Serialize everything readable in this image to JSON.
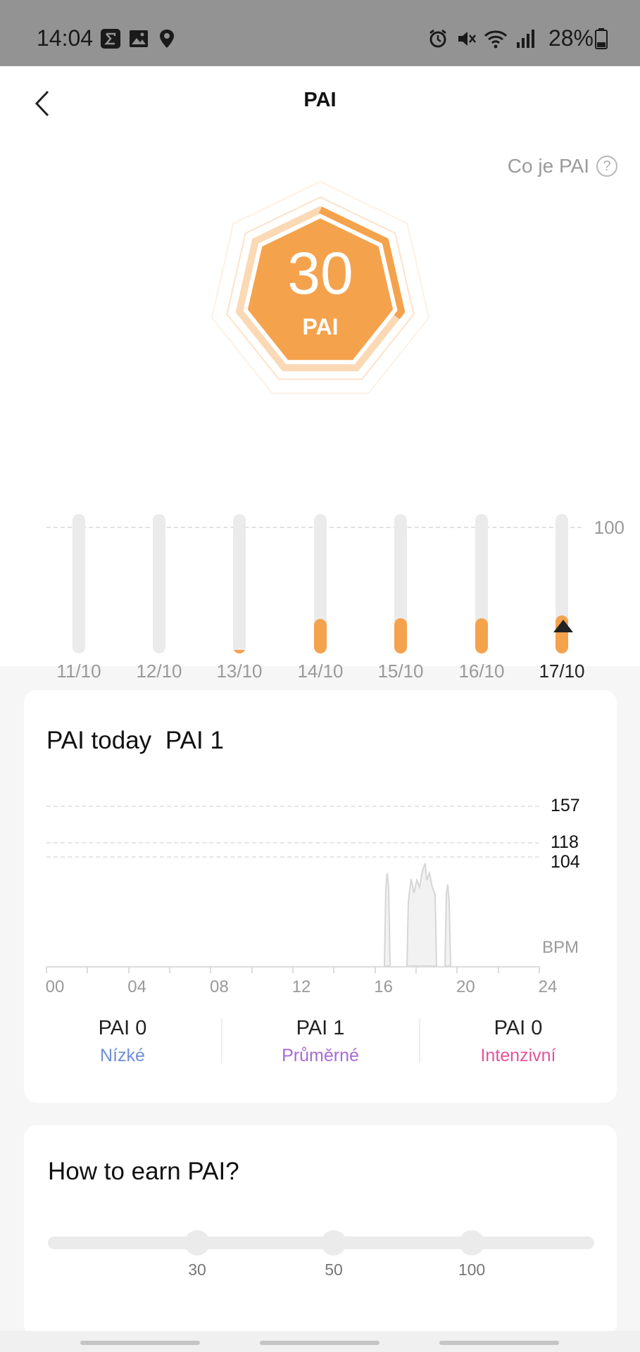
{
  "status_bar": {
    "time": "14:04",
    "battery": "28%",
    "left_icons": [
      "sigma-icon",
      "gallery-icon",
      "location-icon"
    ],
    "right_icons": [
      "alarm-icon",
      "mute-icon",
      "wifi-icon",
      "signal-icon",
      "battery-icon"
    ]
  },
  "header": {
    "title": "PAI"
  },
  "what_is": {
    "label": "Co je PAI"
  },
  "score": {
    "value": "30",
    "unit": "PAI",
    "progress": 0.3
  },
  "week_chart": {
    "reference_label": "100",
    "selected_index": 6,
    "days": [
      {
        "date": "11/10",
        "value": 0
      },
      {
        "date": "12/10",
        "value": 0
      },
      {
        "date": "13/10",
        "value": 2
      },
      {
        "date": "14/10",
        "value": 27
      },
      {
        "date": "15/10",
        "value": 28
      },
      {
        "date": "16/10",
        "value": 28
      },
      {
        "date": "17/10",
        "value": 30
      }
    ]
  },
  "today": {
    "title": "PAI today",
    "value_label": "PAI 1",
    "bpm_label": "BPM",
    "ref_lines": [
      {
        "label": "157",
        "color": "#e2549b"
      },
      {
        "label": "118",
        "color": "#a86ad4"
      },
      {
        "label": "104",
        "color": "#6e8fd8"
      }
    ],
    "x_ticks": [
      "00",
      "04",
      "08",
      "12",
      "16",
      "20",
      "24"
    ],
    "zones": [
      {
        "value": "PAI 0",
        "name": "Nízké",
        "color": "#6e8fd8"
      },
      {
        "value": "PAI 1",
        "name": "Průměrné",
        "color": "#a86ad4"
      },
      {
        "value": "PAI 0",
        "name": "Intenzivní",
        "color": "#e2549b"
      }
    ]
  },
  "earn": {
    "title": "How to earn PAI?",
    "marks": [
      "30",
      "50",
      "100"
    ]
  },
  "colors": {
    "accent": "#f5a24c",
    "track": "#ebebeb"
  }
}
